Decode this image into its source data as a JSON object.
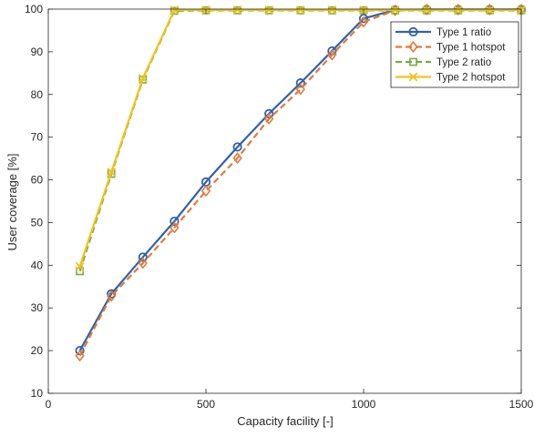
{
  "chart_data": {
    "type": "line",
    "xlabel": "Capacity facility [-]",
    "ylabel": "User coverage [%]",
    "xlim": [
      0,
      1500
    ],
    "ylim": [
      10,
      100
    ],
    "xticks": [
      0,
      500,
      1000,
      1500
    ],
    "yticks": [
      10,
      20,
      30,
      40,
      50,
      60,
      70,
      80,
      90,
      100
    ],
    "grid": false,
    "legend_position": "top-right",
    "x": [
      100,
      200,
      300,
      400,
      500,
      600,
      700,
      800,
      900,
      1000,
      1100,
      1200,
      1300,
      1400,
      1500
    ],
    "series": [
      {
        "name": "Type 1 ratio",
        "color": "#2f62ad",
        "line_style": "solid",
        "marker": "circle",
        "values": [
          20.0,
          33.3,
          41.9,
          50.3,
          59.5,
          67.7,
          75.5,
          82.7,
          90.2,
          97.8,
          99.8,
          99.9,
          99.9,
          99.9,
          99.9
        ]
      },
      {
        "name": "Type 1 hotspot",
        "color": "#e07b39",
        "line_style": "dashed",
        "marker": "diamond",
        "values": [
          18.8,
          32.8,
          40.5,
          48.8,
          57.4,
          65.1,
          74.3,
          81.2,
          89.3,
          97.0,
          99.7,
          99.9,
          99.9,
          99.9,
          99.9
        ]
      },
      {
        "name": "Type 2 ratio",
        "color": "#77ab43",
        "line_style": "dashed",
        "marker": "square",
        "values": [
          38.6,
          61.4,
          83.5,
          99.6,
          99.7,
          99.7,
          99.7,
          99.7,
          99.7,
          99.7,
          99.7,
          99.7,
          99.7,
          99.7,
          99.7
        ]
      },
      {
        "name": "Type 2 hotspot",
        "color": "#f2c21d",
        "line_style": "solid",
        "marker": "x",
        "values": [
          39.7,
          61.8,
          83.8,
          99.8,
          99.8,
          99.8,
          99.8,
          99.8,
          99.8,
          99.8,
          99.8,
          99.8,
          99.8,
          99.8,
          99.8
        ]
      }
    ]
  }
}
